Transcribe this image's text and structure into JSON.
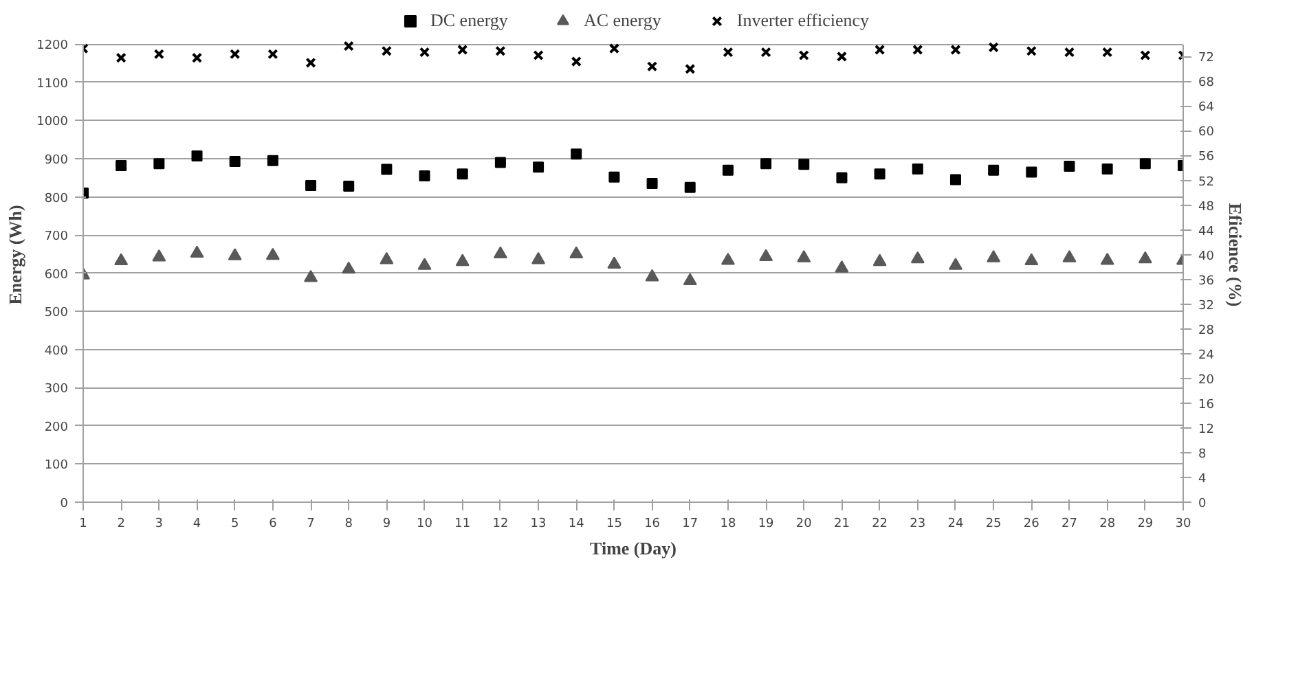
{
  "chart_data": {
    "type": "scatter",
    "xlabel": "Time (Day)",
    "ylabel": "Energy (Wh)",
    "y2label": "Eficience (%)",
    "x": [
      1,
      2,
      3,
      4,
      5,
      6,
      7,
      8,
      9,
      10,
      11,
      12,
      13,
      14,
      15,
      16,
      17,
      18,
      19,
      20,
      21,
      22,
      23,
      24,
      25,
      26,
      27,
      28,
      29,
      30
    ],
    "xlim": [
      1,
      30
    ],
    "xticks": [
      1,
      2,
      3,
      4,
      5,
      6,
      7,
      8,
      9,
      10,
      11,
      12,
      13,
      14,
      15,
      16,
      17,
      18,
      19,
      20,
      21,
      22,
      23,
      24,
      25,
      26,
      27,
      28,
      29,
      30
    ],
    "ylim": [
      0,
      1200
    ],
    "yticks": [
      0,
      100,
      200,
      300,
      400,
      500,
      600,
      700,
      800,
      900,
      1000,
      1100,
      1200
    ],
    "y2lim": [
      0,
      74
    ],
    "y2ticks": [
      0,
      4,
      8,
      12,
      16,
      20,
      24,
      28,
      32,
      36,
      40,
      44,
      48,
      52,
      56,
      60,
      64,
      68,
      72
    ],
    "grid": "y",
    "legend": "top",
    "series": [
      {
        "name": "DC energy",
        "color": "#000000",
        "marker": "square",
        "values": [
          810,
          882,
          887,
          907,
          893,
          895,
          830,
          828,
          872,
          855,
          860,
          890,
          878,
          912,
          852,
          835,
          825,
          870,
          887,
          885,
          850,
          860,
          873,
          845,
          870,
          865,
          880,
          873,
          887,
          882
        ]
      },
      {
        "name": "AC energy",
        "color": "#595959",
        "marker": "triangle",
        "values": [
          595,
          632,
          642,
          652,
          645,
          646,
          588,
          610,
          635,
          620,
          630,
          650,
          635,
          650,
          623,
          590,
          580,
          633,
          643,
          640,
          613,
          630,
          637,
          620,
          640,
          632,
          640,
          633,
          637,
          633
        ]
      },
      {
        "name": "Inverter efficiency",
        "color": "#000000",
        "marker": "cross",
        "axis": "y2",
        "values": [
          73.3,
          71.8,
          72.4,
          71.8,
          72.4,
          72.4,
          71.0,
          73.7,
          72.9,
          72.7,
          73.1,
          72.9,
          72.2,
          71.2,
          73.3,
          70.4,
          70.0,
          72.7,
          72.7,
          72.2,
          72.0,
          73.1,
          73.1,
          73.1,
          73.5,
          72.9,
          72.7,
          72.7,
          72.2,
          72.2
        ]
      }
    ]
  }
}
